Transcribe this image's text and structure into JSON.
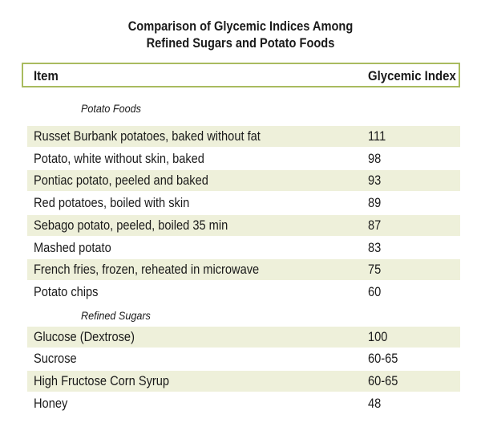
{
  "title": {
    "line1": "Comparison of Glycemic Indices Among",
    "line2": "Refined Sugars and Potato Foods"
  },
  "columns": {
    "item": "Item",
    "gi": "Glycemic Index"
  },
  "sections": [
    {
      "label": "Potato Foods",
      "rows": [
        {
          "item": "Russet Burbank potatoes, baked without fat",
          "gi": "111"
        },
        {
          "item": "Potato, white without skin, baked",
          "gi": "98"
        },
        {
          "item": "Pontiac potato, peeled and baked",
          "gi": "93"
        },
        {
          "item": "Red potatoes, boiled with skin",
          "gi": "89"
        },
        {
          "item": "Sebago potato, peeled, boiled 35 min",
          "gi": "87"
        },
        {
          "item": "Mashed potato",
          "gi": "83"
        },
        {
          "item": "French fries, frozen, reheated in microwave",
          "gi": "75"
        },
        {
          "item": "Potato chips",
          "gi": "60"
        }
      ]
    },
    {
      "label": "Refined Sugars",
      "rows": [
        {
          "item": "Glucose (Dextrose)",
          "gi": "100"
        },
        {
          "item": "Sucrose",
          "gi": "60-65"
        },
        {
          "item": "High Fructose Corn Syrup",
          "gi": "60-65"
        },
        {
          "item": "Honey",
          "gi": "48"
        }
      ]
    }
  ],
  "colors": {
    "header_border": "#a9bb5f",
    "row_shade": "#eef0da"
  }
}
